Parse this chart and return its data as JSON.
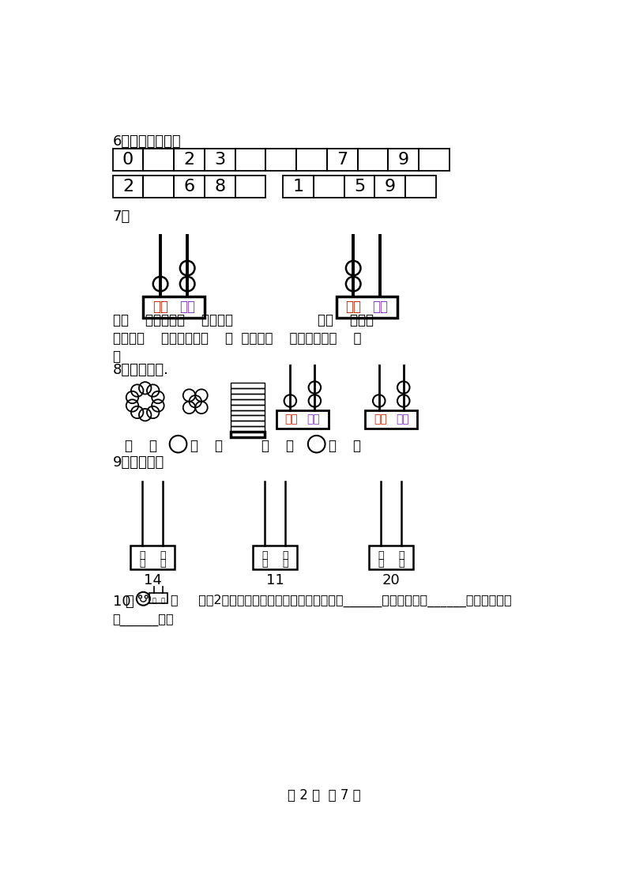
{
  "page_footer": "第 2 页  共 7 页",
  "q6_label": "6．按顺序写数。",
  "q6_row1": [
    "0",
    "",
    "2",
    "3",
    "",
    "",
    "",
    "7",
    "",
    "9",
    ""
  ],
  "q6_row2_left": [
    "2",
    "",
    "6",
    "8",
    ""
  ],
  "q6_row2_right": [
    "1",
    "",
    "5",
    "9",
    ""
  ],
  "q7_label": "7．",
  "q7_text1": "有（    ）个十和（    ）个一。",
  "q7_text2": "有（    ）个十",
  "q7_write1": "写作：（    ），读作：（    ）  写作：（    ），读作：（    ）",
  "q7_comma": "、",
  "q8_label": "8．看图写数.",
  "q9_label": "9．看数画珠",
  "q9_numbers": [
    "14",
    "11",
    "20"
  ],
  "q10_num": "10",
  "q10_dot": "．",
  "q10_text": "在     上拨2颗算珠表示一个数，这个数最大是（______），最小是（______），还可能是",
  "q10_text2": "（______）。",
  "bg_color": "#ffffff",
  "red_color": "#cc2200",
  "purple_color": "#8833cc"
}
